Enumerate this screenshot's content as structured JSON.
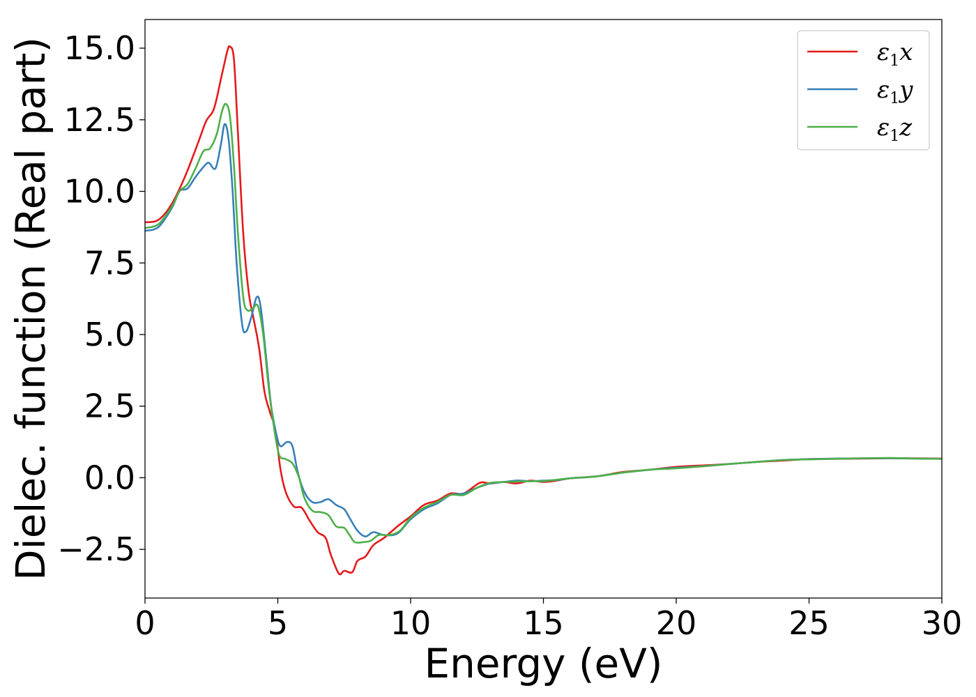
{
  "chart_data": {
    "type": "line",
    "xlabel": "Energy (eV)",
    "ylabel": "Dielec. function (Real part)",
    "xlim": [
      0,
      30
    ],
    "ylim": [
      -4.2,
      16.0
    ],
    "x_ticks": [
      0,
      5,
      10,
      15,
      20,
      25,
      30
    ],
    "x_tick_labels": [
      "0",
      "5",
      "10",
      "15",
      "20",
      "25",
      "30"
    ],
    "y_ticks": [
      -2.5,
      0.0,
      2.5,
      5.0,
      7.5,
      10.0,
      12.5,
      15.0
    ],
    "y_tick_labels": [
      "−2.5",
      "0.0",
      "2.5",
      "5.0",
      "7.5",
      "10.0",
      "12.5",
      "15.0"
    ],
    "grid": false,
    "legend_position": "top-right",
    "series": [
      {
        "name": "ε1x",
        "legend": {
          "base": "ε",
          "sub": "1",
          "axis": "x"
        },
        "color": "#e41a1c",
        "points": [
          [
            0,
            8.92
          ],
          [
            0.5,
            9.0
          ],
          [
            1.0,
            9.55
          ],
          [
            1.5,
            10.5
          ],
          [
            2.0,
            11.7
          ],
          [
            2.3,
            12.45
          ],
          [
            2.6,
            12.9
          ],
          [
            2.9,
            14.1
          ],
          [
            3.1,
            14.9
          ],
          [
            3.2,
            15.05
          ],
          [
            3.35,
            14.6
          ],
          [
            3.5,
            12.0
          ],
          [
            3.7,
            8.5
          ],
          [
            3.9,
            6.5
          ],
          [
            4.1,
            5.5
          ],
          [
            4.3,
            4.5
          ],
          [
            4.5,
            3.0
          ],
          [
            4.7,
            2.3
          ],
          [
            4.9,
            1.7
          ],
          [
            5.1,
            0.3
          ],
          [
            5.3,
            -0.5
          ],
          [
            5.6,
            -1.0
          ],
          [
            5.9,
            -1.05
          ],
          [
            6.2,
            -1.5
          ],
          [
            6.5,
            -1.9
          ],
          [
            6.8,
            -2.1
          ],
          [
            7.0,
            -2.7
          ],
          [
            7.3,
            -3.35
          ],
          [
            7.5,
            -3.25
          ],
          [
            7.8,
            -3.3
          ],
          [
            8.0,
            -2.9
          ],
          [
            8.3,
            -2.75
          ],
          [
            8.6,
            -2.35
          ],
          [
            9.0,
            -2.1
          ],
          [
            9.5,
            -1.7
          ],
          [
            10.0,
            -1.35
          ],
          [
            10.5,
            -0.95
          ],
          [
            11.0,
            -0.8
          ],
          [
            11.5,
            -0.55
          ],
          [
            12.0,
            -0.55
          ],
          [
            12.6,
            -0.18
          ],
          [
            13.0,
            -0.2
          ],
          [
            13.5,
            -0.15
          ],
          [
            14.0,
            -0.2
          ],
          [
            14.5,
            -0.1
          ],
          [
            15.0,
            -0.15
          ],
          [
            15.5,
            -0.1
          ],
          [
            16.0,
            -0.02
          ],
          [
            17.0,
            0.05
          ],
          [
            18.0,
            0.2
          ],
          [
            19.0,
            0.28
          ],
          [
            20.0,
            0.38
          ],
          [
            21.0,
            0.43
          ],
          [
            22.0,
            0.48
          ],
          [
            23.0,
            0.55
          ],
          [
            24.0,
            0.6
          ],
          [
            25.0,
            0.65
          ],
          [
            26.0,
            0.66
          ],
          [
            27.0,
            0.67
          ],
          [
            28.0,
            0.68
          ],
          [
            29.0,
            0.68
          ],
          [
            30.0,
            0.67
          ]
        ]
      },
      {
        "name": "ε1y",
        "legend": {
          "base": "ε",
          "sub": "1",
          "axis": "y"
        },
        "color": "#377eb8",
        "points": [
          [
            0,
            8.62
          ],
          [
            0.5,
            8.75
          ],
          [
            1.0,
            9.4
          ],
          [
            1.3,
            10.0
          ],
          [
            1.6,
            10.1
          ],
          [
            1.9,
            10.5
          ],
          [
            2.2,
            10.85
          ],
          [
            2.4,
            11.0
          ],
          [
            2.65,
            10.8
          ],
          [
            2.85,
            11.6
          ],
          [
            3.0,
            12.35
          ],
          [
            3.15,
            11.8
          ],
          [
            3.3,
            10.0
          ],
          [
            3.45,
            7.5
          ],
          [
            3.65,
            5.4
          ],
          [
            3.8,
            5.1
          ],
          [
            4.0,
            5.6
          ],
          [
            4.2,
            6.3
          ],
          [
            4.35,
            6.0
          ],
          [
            4.55,
            4.3
          ],
          [
            4.75,
            2.5
          ],
          [
            4.95,
            1.5
          ],
          [
            5.1,
            1.1
          ],
          [
            5.35,
            1.25
          ],
          [
            5.55,
            1.1
          ],
          [
            5.75,
            0.2
          ],
          [
            6.0,
            -0.5
          ],
          [
            6.3,
            -0.85
          ],
          [
            6.6,
            -0.85
          ],
          [
            6.9,
            -0.75
          ],
          [
            7.2,
            -0.95
          ],
          [
            7.5,
            -1.1
          ],
          [
            7.7,
            -1.4
          ],
          [
            8.0,
            -1.85
          ],
          [
            8.3,
            -2.05
          ],
          [
            8.6,
            -1.9
          ],
          [
            9.0,
            -2.0
          ],
          [
            9.5,
            -1.95
          ],
          [
            10.0,
            -1.45
          ],
          [
            10.5,
            -1.1
          ],
          [
            11.0,
            -0.9
          ],
          [
            11.5,
            -0.6
          ],
          [
            12.0,
            -0.55
          ],
          [
            12.5,
            -0.35
          ],
          [
            13.0,
            -0.2
          ],
          [
            13.5,
            -0.15
          ],
          [
            14.0,
            -0.1
          ],
          [
            14.5,
            -0.12
          ],
          [
            15.0,
            -0.1
          ],
          [
            15.5,
            -0.08
          ],
          [
            16.0,
            -0.02
          ],
          [
            17.0,
            0.05
          ],
          [
            18.0,
            0.18
          ],
          [
            19.0,
            0.28
          ],
          [
            20.0,
            0.35
          ],
          [
            21.0,
            0.4
          ],
          [
            22.0,
            0.48
          ],
          [
            23.0,
            0.55
          ],
          [
            24.0,
            0.62
          ],
          [
            25.0,
            0.65
          ],
          [
            26.0,
            0.67
          ],
          [
            27.0,
            0.68
          ],
          [
            28.0,
            0.68
          ],
          [
            29.0,
            0.67
          ],
          [
            30.0,
            0.66
          ]
        ]
      },
      {
        "name": "ε1z",
        "legend": {
          "base": "ε",
          "sub": "1",
          "axis": "z"
        },
        "color": "#4daf4a",
        "points": [
          [
            0,
            8.72
          ],
          [
            0.5,
            8.85
          ],
          [
            1.0,
            9.45
          ],
          [
            1.3,
            10.0
          ],
          [
            1.6,
            10.25
          ],
          [
            1.9,
            10.8
          ],
          [
            2.2,
            11.4
          ],
          [
            2.45,
            11.5
          ],
          [
            2.7,
            12.0
          ],
          [
            2.9,
            12.8
          ],
          [
            3.05,
            13.05
          ],
          [
            3.2,
            12.6
          ],
          [
            3.35,
            10.9
          ],
          [
            3.5,
            8.5
          ],
          [
            3.7,
            6.3
          ],
          [
            3.85,
            5.85
          ],
          [
            4.05,
            5.9
          ],
          [
            4.25,
            6.0
          ],
          [
            4.45,
            5.0
          ],
          [
            4.65,
            3.2
          ],
          [
            4.85,
            1.8
          ],
          [
            5.05,
            0.8
          ],
          [
            5.3,
            0.65
          ],
          [
            5.55,
            0.5
          ],
          [
            5.8,
            0.0
          ],
          [
            6.0,
            -0.7
          ],
          [
            6.3,
            -1.15
          ],
          [
            6.6,
            -1.2
          ],
          [
            6.9,
            -1.3
          ],
          [
            7.2,
            -1.7
          ],
          [
            7.5,
            -1.75
          ],
          [
            7.7,
            -2.0
          ],
          [
            7.9,
            -2.25
          ],
          [
            8.2,
            -2.25
          ],
          [
            8.5,
            -2.2
          ],
          [
            8.8,
            -2.0
          ],
          [
            9.2,
            -2.0
          ],
          [
            9.6,
            -1.85
          ],
          [
            10.0,
            -1.4
          ],
          [
            10.5,
            -1.05
          ],
          [
            11.0,
            -0.85
          ],
          [
            11.5,
            -0.6
          ],
          [
            12.0,
            -0.6
          ],
          [
            12.5,
            -0.35
          ],
          [
            13.0,
            -0.18
          ],
          [
            13.5,
            -0.15
          ],
          [
            14.0,
            -0.13
          ],
          [
            14.5,
            -0.12
          ],
          [
            15.0,
            -0.12
          ],
          [
            15.5,
            -0.07
          ],
          [
            16.0,
            -0.02
          ],
          [
            17.0,
            0.05
          ],
          [
            18.0,
            0.18
          ],
          [
            19.0,
            0.28
          ],
          [
            20.0,
            0.33
          ],
          [
            21.0,
            0.4
          ],
          [
            22.0,
            0.48
          ],
          [
            23.0,
            0.55
          ],
          [
            24.0,
            0.62
          ],
          [
            25.0,
            0.64
          ],
          [
            26.0,
            0.66
          ],
          [
            27.0,
            0.68
          ],
          [
            28.0,
            0.69
          ],
          [
            29.0,
            0.67
          ],
          [
            30.0,
            0.66
          ]
        ]
      }
    ]
  }
}
